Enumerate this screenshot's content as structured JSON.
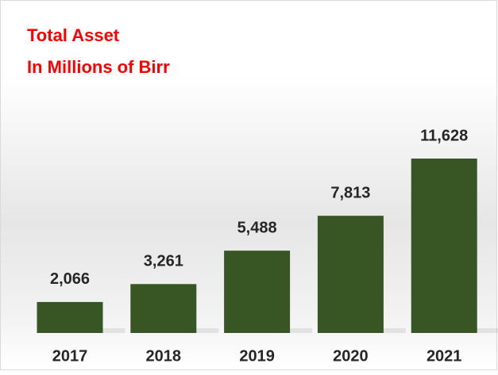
{
  "chart_data": {
    "type": "bar",
    "title": "Total Asset",
    "subtitle": "In Millions of Birr",
    "categories": [
      "2017",
      "2018",
      "2019",
      "2020",
      "2021"
    ],
    "values": [
      2066,
      3261,
      5488,
      7813,
      11628
    ],
    "value_labels": [
      "2,066",
      "3,261",
      "5,488",
      "7,813",
      "11,628"
    ],
    "color": "#375623"
  }
}
